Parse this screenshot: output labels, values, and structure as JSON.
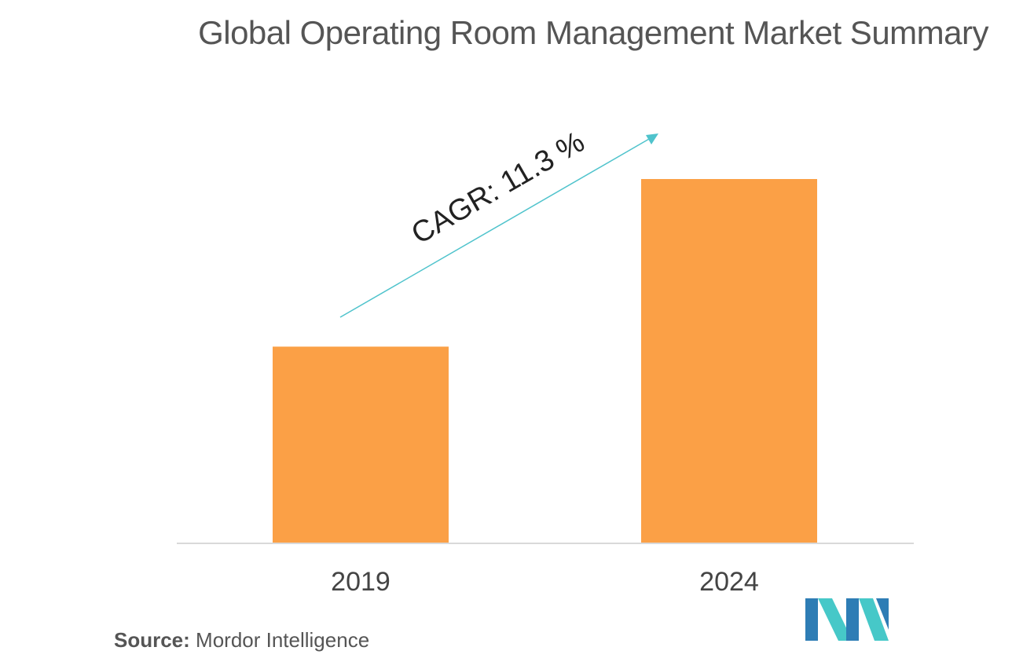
{
  "chart_data": {
    "type": "bar",
    "title": "Global Operating Room Management Market Summary",
    "categories": [
      "2019",
      "2024"
    ],
    "values": [
      54,
      100
    ],
    "annotation": "CAGR: 11.3 %",
    "grid": false,
    "legend": "none",
    "bar_color": "#FBA046",
    "axis_color": "#D9D9D9",
    "arrow_color": "#4FC3CC"
  },
  "source": {
    "label": "Source:",
    "text": " Mordor Intelligence"
  },
  "logo": {
    "colors": [
      "#2E7DB5",
      "#46C8C8"
    ]
  }
}
